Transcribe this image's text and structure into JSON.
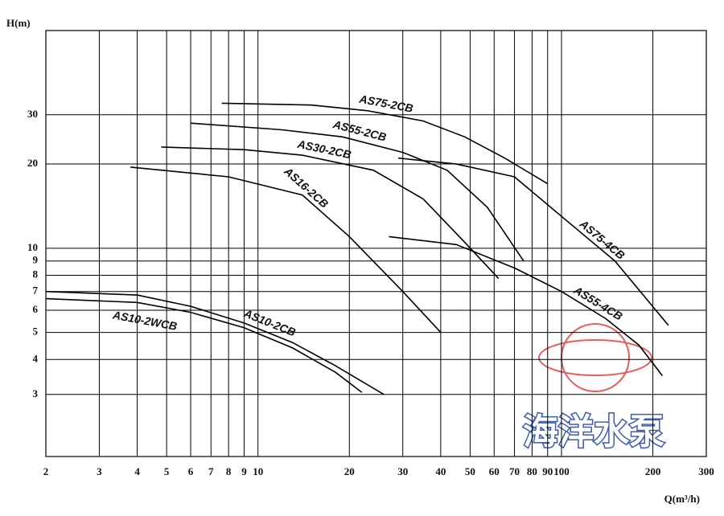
{
  "chart_data": {
    "type": "line",
    "x_label": "Q(m³/h)",
    "y_label": "H(m)",
    "brand": "海洋水泵",
    "xscale": "log",
    "yscale": "log",
    "grid": true,
    "xlim": [
      2,
      300
    ],
    "ylim": [
      1.8,
      60
    ],
    "xticks": [
      2,
      3,
      4,
      5,
      6,
      7,
      8,
      9,
      10,
      20,
      30,
      40,
      50,
      60,
      70,
      80,
      90,
      100,
      200,
      300
    ],
    "yticks": [
      3,
      4,
      5,
      6,
      7,
      8,
      9,
      10,
      20,
      30
    ],
    "series": [
      {
        "name": "AS75-2CB",
        "color": "#000000",
        "x": [
          7.6,
          15,
          23,
          35,
          48,
          65,
          90
        ],
        "values": [
          33,
          32.5,
          31,
          28.5,
          25,
          21,
          17
        ]
      },
      {
        "name": "AS55-2CB",
        "color": "#000000",
        "x": [
          6,
          12,
          19,
          30,
          42,
          57,
          75
        ],
        "values": [
          28,
          26.5,
          25,
          22,
          19,
          14,
          9
        ]
      },
      {
        "name": "AS30-2CB",
        "color": "#000000",
        "x": [
          4.8,
          9,
          14,
          24,
          35,
          48,
          62
        ],
        "values": [
          23,
          22.5,
          21.5,
          19,
          15,
          10.5,
          7.8
        ]
      },
      {
        "name": "AS16-2CB",
        "color": "#000000",
        "x": [
          3.8,
          8,
          14,
          20,
          30,
          40
        ],
        "values": [
          19.5,
          18,
          15.5,
          11,
          7,
          5
        ]
      },
      {
        "name": "AS75-4CB",
        "color": "#000000",
        "x": [
          29,
          45,
          70,
          100,
          150,
          225
        ],
        "values": [
          21,
          20,
          18,
          13,
          9,
          5.3
        ]
      },
      {
        "name": "AS55-4CB",
        "color": "#000000",
        "x": [
          27,
          45,
          70,
          100,
          140,
          180,
          215
        ],
        "values": [
          11,
          10.3,
          8.5,
          7,
          5.6,
          4.5,
          3.5
        ]
      },
      {
        "name": "AS10-2WCB",
        "color": "#000000",
        "x": [
          2,
          4,
          6,
          9,
          13,
          18,
          22
        ],
        "values": [
          6.6,
          6.4,
          5.9,
          5.2,
          4.4,
          3.6,
          3.05
        ]
      },
      {
        "name": "AS10-2CB",
        "color": "#000000",
        "x": [
          2,
          4,
          6,
          9,
          13,
          18,
          26
        ],
        "values": [
          7,
          6.8,
          6.2,
          5.4,
          4.6,
          3.8,
          3
        ]
      }
    ]
  }
}
